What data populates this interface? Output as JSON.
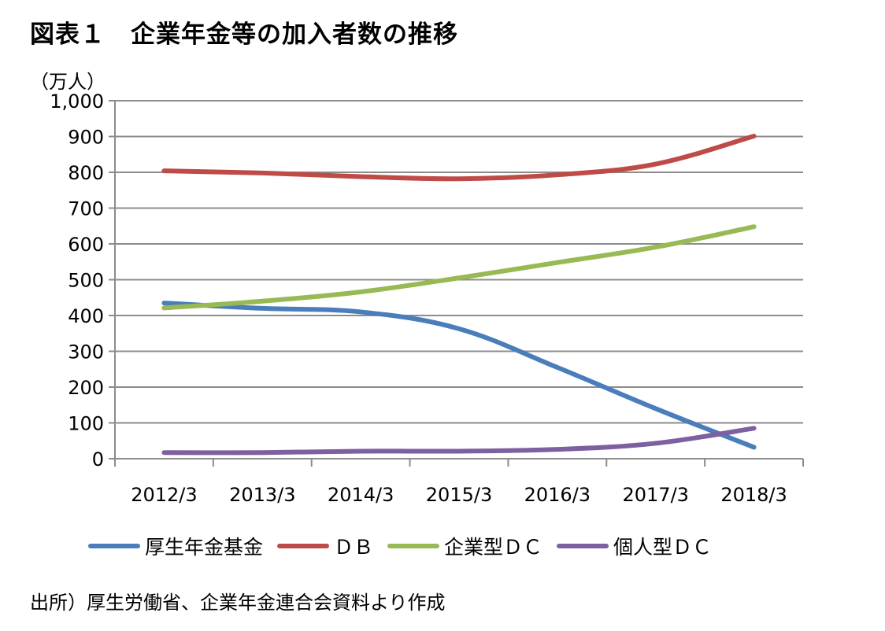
{
  "chart_data": {
    "type": "line",
    "title": "図表１　企業年金等の加入者数の推移",
    "ylabel": "（万人）",
    "xlabel": "",
    "ylim": [
      0,
      1000
    ],
    "yticks": [
      "0",
      "100",
      "200",
      "300",
      "400",
      "500",
      "600",
      "700",
      "800",
      "900",
      "1,000"
    ],
    "grid": true,
    "legend_position": "bottom",
    "x": [
      "2012/3",
      "2013/3",
      "2014/3",
      "2015/3",
      "2016/3",
      "2017/3",
      "2018/3"
    ],
    "series": [
      {
        "name": "厚生年金基金",
        "color": "#4a7ebb",
        "values": [
          435,
          420,
          410,
          363,
          255,
          140,
          32
        ]
      },
      {
        "name": "ＤＢ",
        "color": "#be4b48",
        "values": [
          804,
          798,
          788,
          782,
          793,
          823,
          901
        ]
      },
      {
        "name": "企業型ＤＣ",
        "color": "#98b954",
        "values": [
          421,
          440,
          466,
          505,
          548,
          591,
          648
        ]
      },
      {
        "name": "個人型ＤＣ",
        "color": "#7d60a0",
        "values": [
          17,
          17,
          21,
          21,
          26,
          43,
          85
        ]
      }
    ]
  },
  "source": "出所）厚生労働省、企業年金連合会資料より作成"
}
